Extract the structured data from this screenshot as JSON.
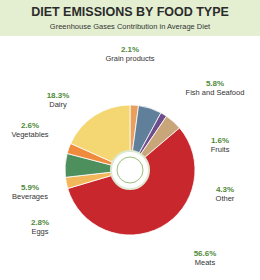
{
  "chart_data": {
    "type": "pie",
    "title": "DIET EMISSIONS BY FOOD TYPE",
    "subtitle": "Greenhouse Gases Contribution in Average Diet",
    "categories": [
      "Grain products",
      "Fish and Seafood",
      "Fruits",
      "Other",
      "Meats",
      "Eggs",
      "Beverages",
      "Vegetables",
      "Dairy"
    ],
    "values": [
      2.1,
      5.8,
      1.6,
      4.3,
      56.6,
      2.8,
      5.9,
      2.6,
      18.3
    ],
    "value_labels": [
      "2.1%",
      "5.8%",
      "1.6%",
      "4.3%",
      "56.6%",
      "2.8%",
      "5.9%",
      "2.6%",
      "18.3%"
    ],
    "colors": [
      "#e8a05c",
      "#5f7f9b",
      "#6d4d8c",
      "#c9a57a",
      "#c8282d",
      "#f2b75a",
      "#4d8f5d",
      "#f08a3c",
      "#f4d673"
    ],
    "data_labels": true
  }
}
